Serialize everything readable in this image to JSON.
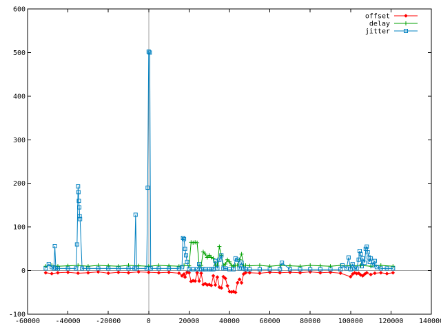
{
  "chart_data": {
    "type": "line",
    "title": "",
    "xlabel": "",
    "ylabel": "",
    "xlim": [
      -60000,
      140000
    ],
    "ylim": [
      -100,
      600
    ],
    "xticks": [
      -60000,
      -40000,
      -20000,
      0,
      20000,
      40000,
      60000,
      80000,
      100000,
      120000,
      140000
    ],
    "xtick_labels": [
      "-60000",
      "-40000",
      "-20000",
      "0",
      "20000",
      "40000",
      "60000",
      "80000",
      "100000",
      "120000",
      "140000"
    ],
    "yticks": [
      -100,
      0,
      100,
      200,
      300,
      400,
      500,
      600
    ],
    "ytick_labels": [
      "-100",
      "0",
      "100",
      "200",
      "300",
      "400",
      "500",
      "600"
    ],
    "axis_lines": {
      "x_at_y": 0,
      "y_at_x": 0
    },
    "grid": false,
    "legend_position": "top-right",
    "series": [
      {
        "name": "offset",
        "color": "#ff0000",
        "marker": "diamond",
        "x": [
          -51000,
          -48000,
          -45000,
          -40000,
          -35000,
          -30000,
          -25000,
          -20000,
          -15000,
          -10000,
          -5000,
          0,
          5000,
          10000,
          15000,
          16500,
          17500,
          18000,
          19000,
          20000,
          21000,
          22000,
          23000,
          24000,
          25000,
          26000,
          27000,
          28000,
          29000,
          30000,
          31000,
          32000,
          33000,
          34000,
          35000,
          36000,
          37000,
          38000,
          39000,
          40000,
          41000,
          42000,
          43000,
          44000,
          45000,
          46000,
          47000,
          48000,
          50000,
          55000,
          60000,
          65000,
          70000,
          75000,
          80000,
          85000,
          90000,
          95000,
          100000,
          101000,
          102000,
          103000,
          104000,
          105000,
          106000,
          107000,
          108000,
          110000,
          112000,
          115000,
          118000,
          121000
        ],
        "y": [
          -5,
          -7,
          -5,
          -4,
          -6,
          -5,
          -3,
          -6,
          -4,
          -5,
          -3,
          -4,
          -5,
          -4,
          -6,
          -12,
          -8,
          -15,
          -4,
          -5,
          -25,
          -23,
          -24,
          -5,
          -24,
          -6,
          -32,
          -30,
          -33,
          -32,
          -34,
          -12,
          -33,
          -15,
          -38,
          -40,
          -14,
          -18,
          -35,
          -48,
          -49,
          -48,
          -50,
          -28,
          -20,
          -28,
          -8,
          -5,
          -5,
          -6,
          -4,
          -5,
          -4,
          -5,
          -3,
          -5,
          -4,
          -6,
          -14,
          -8,
          -5,
          -7,
          -6,
          -10,
          -12,
          -8,
          -5,
          -9,
          -6,
          -5,
          -7,
          -5
        ]
      },
      {
        "name": "delay",
        "color": "#00a000",
        "marker": "plus",
        "x": [
          -51000,
          -48000,
          -45000,
          -40000,
          -35000,
          -30000,
          -25000,
          -20000,
          -15000,
          -10000,
          -5000,
          0,
          5000,
          10000,
          15000,
          17500,
          20000,
          21000,
          22000,
          23000,
          24000,
          25000,
          26000,
          27000,
          28000,
          29000,
          30000,
          31000,
          32000,
          33000,
          34000,
          35000,
          36000,
          37000,
          38000,
          39000,
          40000,
          41000,
          42000,
          43000,
          44000,
          45000,
          46000,
          47000,
          48000,
          50000,
          55000,
          60000,
          65000,
          70000,
          75000,
          80000,
          85000,
          90000,
          95000,
          100000,
          105000,
          110000,
          115000,
          121000
        ],
        "y": [
          10,
          12,
          10,
          11,
          12,
          10,
          12,
          11,
          10,
          12,
          11,
          10,
          12,
          11,
          10,
          12,
          11,
          65,
          64,
          65,
          64,
          12,
          12,
          43,
          38,
          30,
          35,
          30,
          28,
          12,
          12,
          55,
          35,
          12,
          15,
          25,
          20,
          12,
          10,
          12,
          12,
          25,
          38,
          12,
          12,
          11,
          12,
          10,
          12,
          11,
          10,
          12,
          11,
          10,
          12,
          11,
          12,
          10,
          12,
          10
        ]
      },
      {
        "name": "jitter",
        "color": "#0080c0",
        "marker": "square",
        "x": [
          -51000,
          -49500,
          -48000,
          -47000,
          -46500,
          -46000,
          -45000,
          -40000,
          -36000,
          -35500,
          -35000,
          -34800,
          -34600,
          -34400,
          -34200,
          -34000,
          -33000,
          -30000,
          -25000,
          -20000,
          -15000,
          -10000,
          -7000,
          -6500,
          -6000,
          -1000,
          -500,
          0,
          500,
          1000,
          5000,
          10000,
          15000,
          16500,
          17000,
          17500,
          18000,
          18500,
          19000,
          20000,
          22000,
          24000,
          25000,
          26000,
          27000,
          28000,
          30000,
          31000,
          32000,
          33000,
          34000,
          35000,
          36000,
          37000,
          38000,
          40000,
          42000,
          43000,
          44000,
          45000,
          46000,
          47000,
          48000,
          50000,
          55000,
          60000,
          65000,
          66000,
          70000,
          75000,
          80000,
          85000,
          90000,
          95000,
          96000,
          98000,
          99000,
          100000,
          101000,
          102000,
          103000,
          104000,
          104500,
          105000,
          105500,
          106000,
          107000,
          107500,
          108000,
          108500,
          109000,
          109500,
          110000,
          111000,
          112000,
          113000,
          115000,
          118000,
          121000
        ],
        "y": [
          5,
          15,
          8,
          5,
          56,
          5,
          5,
          5,
          5,
          60,
          193,
          180,
          160,
          145,
          125,
          118,
          5,
          5,
          5,
          5,
          5,
          5,
          5,
          128,
          5,
          5,
          190,
          502,
          500,
          5,
          5,
          5,
          5,
          8,
          75,
          72,
          50,
          35,
          20,
          3,
          3,
          3,
          15,
          3,
          3,
          3,
          3,
          3,
          3,
          22,
          5,
          25,
          35,
          5,
          5,
          3,
          3,
          28,
          25,
          5,
          18,
          5,
          3,
          3,
          3,
          3,
          3,
          18,
          3,
          3,
          3,
          3,
          3,
          3,
          12,
          5,
          30,
          3,
          15,
          5,
          5,
          25,
          45,
          38,
          10,
          28,
          18,
          50,
          55,
          42,
          30,
          20,
          28,
          12,
          22,
          8,
          5,
          5,
          5
        ]
      }
    ]
  }
}
